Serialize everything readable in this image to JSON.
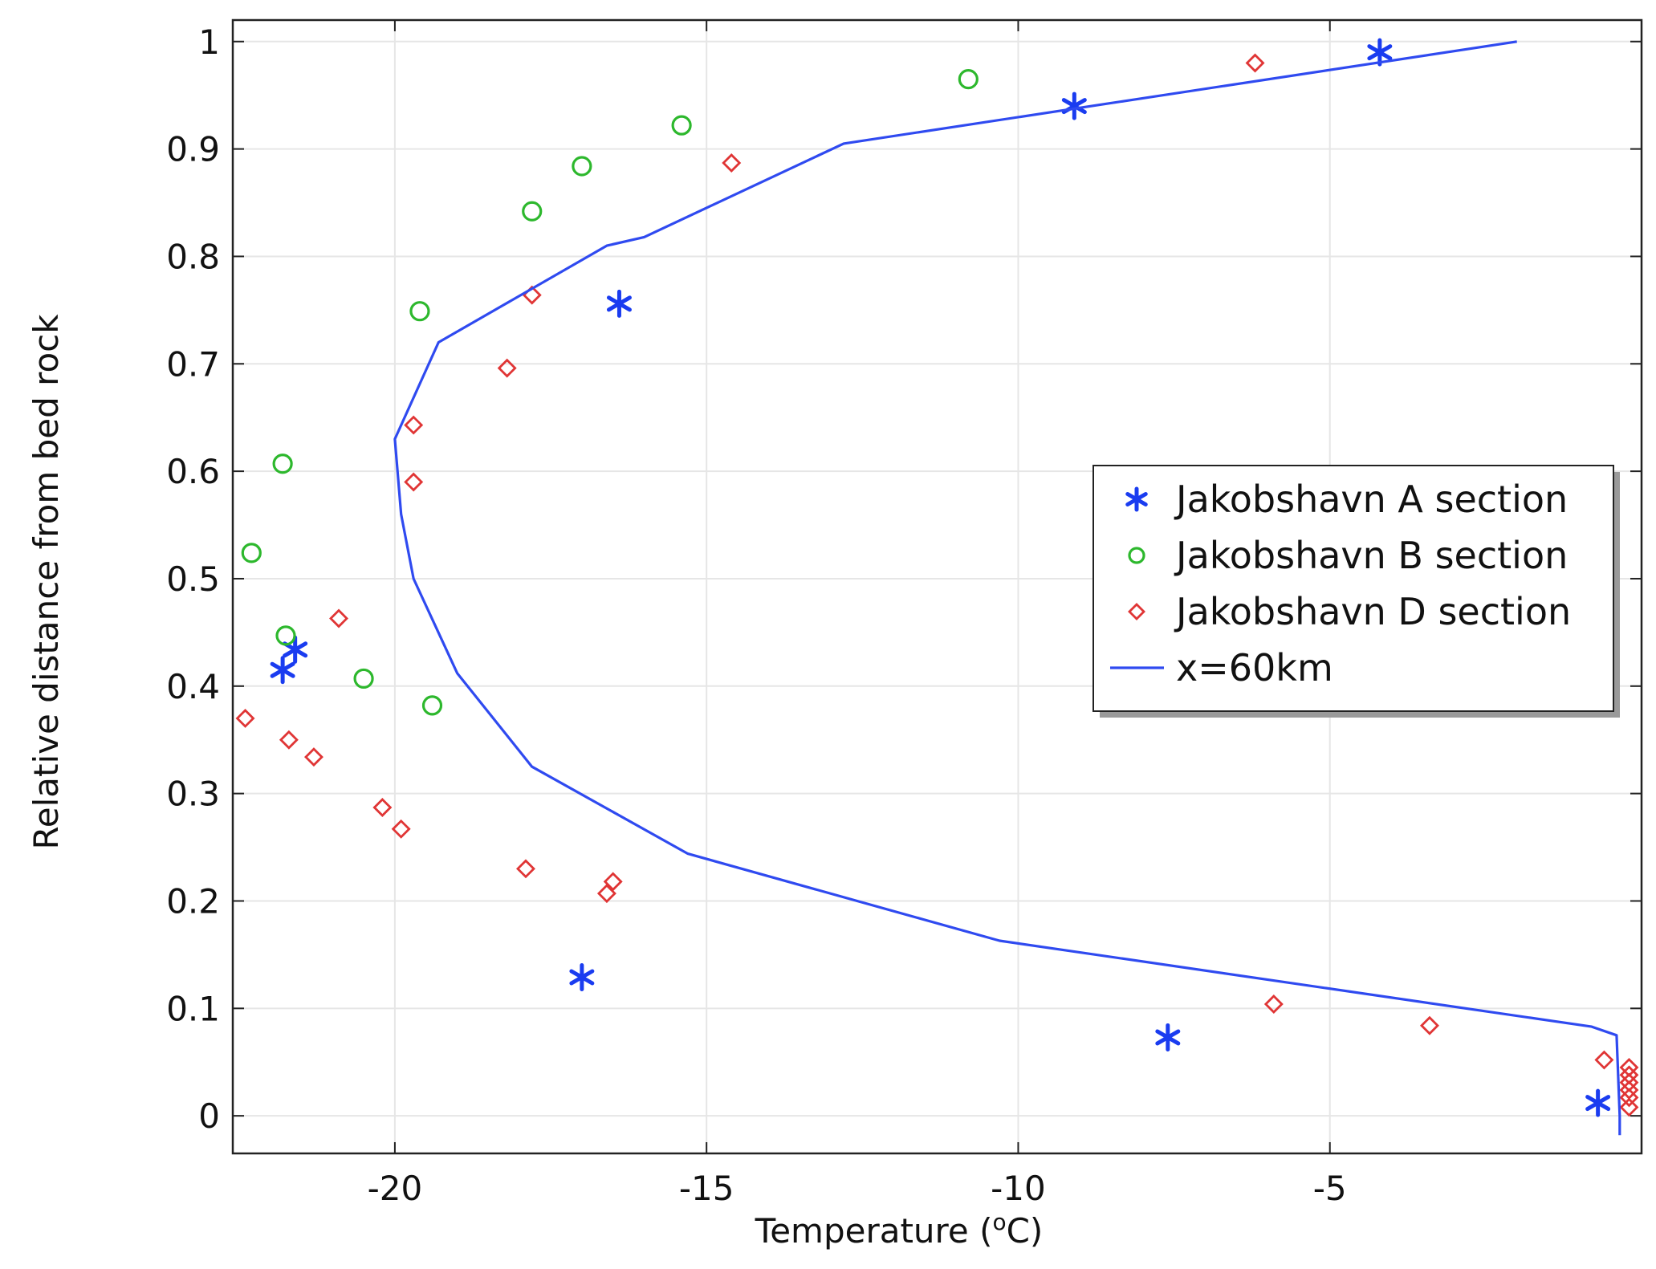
{
  "chart_data": {
    "type": "scatter",
    "title": "",
    "xlabel_prefix": "Temperature (",
    "xlabel_sup": "o",
    "xlabel_suffix": "C)",
    "ylabel": "Relative distance from bed rock",
    "xlim": [
      -22.6,
      0.0
    ],
    "ylim": [
      -0.035,
      1.02
    ],
    "grid": true,
    "legend_position": "right-middle",
    "x_ticks": [
      -20,
      -15,
      -10,
      -5
    ],
    "x_tick_labels": [
      "-20",
      "-15",
      "-10",
      "-5"
    ],
    "y_ticks": [
      0,
      0.1,
      0.2,
      0.3,
      0.4,
      0.5,
      0.6,
      0.7,
      0.8,
      0.9,
      1
    ],
    "y_tick_labels": [
      "0",
      "0.1",
      "0.2",
      "0.3",
      "0.4",
      "0.5",
      "0.6",
      "0.7",
      "0.8",
      "0.9",
      "1"
    ],
    "colors": {
      "A": "#1a3cf0",
      "B": "#2db82d",
      "D": "#e03535",
      "line": "#2f4af0"
    },
    "series": [
      {
        "name": "Jakobshavn A section",
        "marker": "asterisk",
        "points": [
          [
            -4.2,
            0.99
          ],
          [
            -9.1,
            0.94
          ],
          [
            -16.4,
            0.756
          ],
          [
            -21.8,
            0.415
          ],
          [
            -21.6,
            0.434
          ],
          [
            -17.0,
            0.129
          ],
          [
            -7.6,
            0.073
          ],
          [
            -0.7,
            0.012
          ]
        ]
      },
      {
        "name": "Jakobshavn B section",
        "marker": "circle",
        "points": [
          [
            -10.8,
            0.965
          ],
          [
            -15.4,
            0.922
          ],
          [
            -17.0,
            0.884
          ],
          [
            -17.8,
            0.842
          ],
          [
            -19.6,
            0.749
          ],
          [
            -21.8,
            0.607
          ],
          [
            -22.3,
            0.524
          ],
          [
            -21.75,
            0.447
          ],
          [
            -20.5,
            0.407
          ],
          [
            -19.4,
            0.382
          ]
        ]
      },
      {
        "name": "Jakobshavn D section",
        "marker": "diamond",
        "points": [
          [
            -6.2,
            0.98
          ],
          [
            -14.6,
            0.887
          ],
          [
            -17.8,
            0.764
          ],
          [
            -18.2,
            0.696
          ],
          [
            -19.7,
            0.643
          ],
          [
            -19.7,
            0.59
          ],
          [
            -20.9,
            0.463
          ],
          [
            -22.4,
            0.37
          ],
          [
            -21.7,
            0.35
          ],
          [
            -21.3,
            0.334
          ],
          [
            -20.2,
            0.287
          ],
          [
            -19.9,
            0.267
          ],
          [
            -17.9,
            0.23
          ],
          [
            -16.5,
            0.218
          ],
          [
            -16.6,
            0.207
          ],
          [
            -5.9,
            0.104
          ],
          [
            -3.4,
            0.084
          ],
          [
            -0.6,
            0.052
          ],
          [
            -0.2,
            0.045
          ],
          [
            -0.2,
            0.038
          ],
          [
            -0.2,
            0.031
          ],
          [
            -0.2,
            0.024
          ],
          [
            -0.2,
            0.017
          ],
          [
            -0.2,
            0.008
          ]
        ]
      },
      {
        "name": "x=60km",
        "marker": "line",
        "points": [
          [
            -2.0,
            1.0
          ],
          [
            -12.8,
            0.905
          ],
          [
            -16.0,
            0.818
          ],
          [
            -16.6,
            0.81
          ],
          [
            -19.3,
            0.72
          ],
          [
            -20.0,
            0.63
          ],
          [
            -19.9,
            0.56
          ],
          [
            -19.7,
            0.5
          ],
          [
            -19.0,
            0.412
          ],
          [
            -17.8,
            0.325
          ],
          [
            -15.3,
            0.244
          ],
          [
            -10.3,
            0.163
          ],
          [
            -0.8,
            0.083
          ],
          [
            -0.4,
            0.075
          ],
          [
            -0.35,
            0.0
          ],
          [
            -0.35,
            -0.018
          ]
        ]
      }
    ]
  }
}
